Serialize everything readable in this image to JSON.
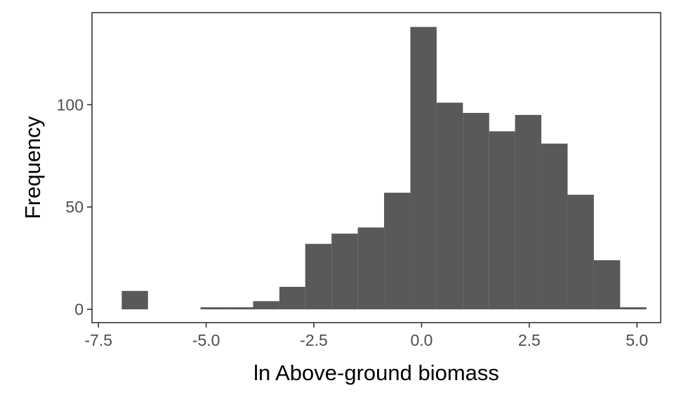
{
  "chart_data": {
    "type": "bar",
    "title": "",
    "xlabel": "ln Above-ground biomass",
    "ylabel": "Frequency",
    "bar_color": "#595959",
    "panel_border_color": "#333333",
    "grid": false,
    "xlim": [
      -7.65,
      5.55
    ],
    "ylim": [
      -6.5,
      145
    ],
    "x_ticks": [
      -7.5,
      -5.0,
      -2.5,
      0.0,
      2.5,
      5.0
    ],
    "x_tick_labels": [
      "-7.5",
      "-5.0",
      "-2.5",
      "0.0",
      "2.5",
      "5.0"
    ],
    "y_ticks": [
      0,
      50,
      100
    ],
    "y_tick_labels": [
      "0",
      "50",
      "100"
    ],
    "bins": [
      {
        "x0": -6.96,
        "x1": -6.35,
        "count": 9
      },
      {
        "x0": -6.35,
        "x1": -5.74,
        "count": 0
      },
      {
        "x0": -5.74,
        "x1": -5.13,
        "count": 0
      },
      {
        "x0": -5.13,
        "x1": -4.52,
        "count": 1
      },
      {
        "x0": -4.52,
        "x1": -3.91,
        "count": 1
      },
      {
        "x0": -3.91,
        "x1": -3.3,
        "count": 4
      },
      {
        "x0": -3.3,
        "x1": -2.7,
        "count": 11
      },
      {
        "x0": -2.7,
        "x1": -2.09,
        "count": 32
      },
      {
        "x0": -2.09,
        "x1": -1.48,
        "count": 37
      },
      {
        "x0": -1.48,
        "x1": -0.87,
        "count": 40
      },
      {
        "x0": -0.87,
        "x1": -0.26,
        "count": 57
      },
      {
        "x0": -0.26,
        "x1": 0.35,
        "count": 138
      },
      {
        "x0": 0.35,
        "x1": 0.96,
        "count": 101
      },
      {
        "x0": 0.96,
        "x1": 1.57,
        "count": 96
      },
      {
        "x0": 1.57,
        "x1": 2.17,
        "count": 87
      },
      {
        "x0": 2.17,
        "x1": 2.78,
        "count": 95
      },
      {
        "x0": 2.78,
        "x1": 3.39,
        "count": 81
      },
      {
        "x0": 3.39,
        "x1": 4.0,
        "count": 56
      },
      {
        "x0": 4.0,
        "x1": 4.61,
        "count": 24
      },
      {
        "x0": 4.61,
        "x1": 5.22,
        "count": 1
      }
    ]
  }
}
